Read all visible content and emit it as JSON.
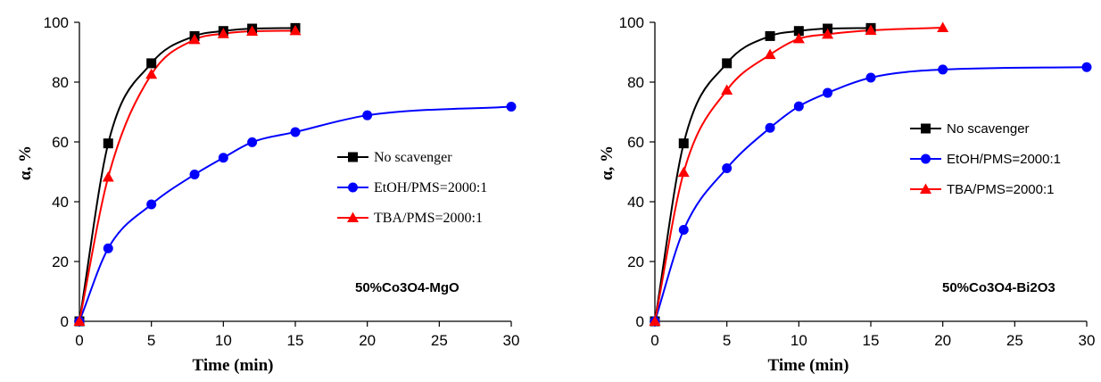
{
  "chart_data": [
    {
      "type": "line",
      "title": "",
      "xlabel": "Time (min)",
      "ylabel": "α, %",
      "annotation": "50%Co3O4-MgO",
      "xlim": [
        0,
        30
      ],
      "ylim": [
        0,
        100
      ],
      "xticks": [
        0,
        5,
        10,
        15,
        20,
        25,
        30
      ],
      "yticks": [
        0,
        20,
        40,
        60,
        80,
        100
      ],
      "grid": false,
      "legend_position": "right",
      "series": [
        {
          "name": "No scavenger",
          "color": "#000000",
          "marker": "square",
          "x": [
            0,
            2,
            5,
            8,
            10,
            12,
            15
          ],
          "y": [
            0,
            59.5,
            86.3,
            95.4,
            97.1,
            97.9,
            98.1
          ]
        },
        {
          "name": "EtOH/PMS=2000:1",
          "color": "#0000ff",
          "marker": "circle",
          "x": [
            0,
            2,
            5,
            8,
            10,
            12,
            15,
            20,
            30
          ],
          "y": [
            0,
            24.4,
            39.1,
            49.1,
            54.7,
            59.9,
            63.3,
            68.9,
            71.8
          ]
        },
        {
          "name": "TBA/PMS=2000:1",
          "color": "#ff0000",
          "marker": "triangle",
          "x": [
            0,
            2,
            5,
            8,
            10,
            12,
            15
          ],
          "y": [
            0,
            48.2,
            82.6,
            94.2,
            96.2,
            97.0,
            97.2
          ]
        }
      ]
    },
    {
      "type": "line",
      "title": "",
      "xlabel": "Time (min)",
      "ylabel": "α, %",
      "annotation": "50%Co3O4-Bi2O3",
      "xlim": [
        0,
        30
      ],
      "ylim": [
        0,
        100
      ],
      "xticks": [
        0,
        5,
        10,
        15,
        20,
        25,
        30
      ],
      "yticks": [
        0,
        20,
        40,
        60,
        80,
        100
      ],
      "grid": false,
      "legend_position": "right",
      "series": [
        {
          "name": "No scavenger",
          "color": "#000000",
          "marker": "square",
          "x": [
            0,
            2,
            5,
            8,
            10,
            12,
            15
          ],
          "y": [
            0,
            59.5,
            86.3,
            95.4,
            97.1,
            97.9,
            98.1
          ]
        },
        {
          "name": "EtOH/PMS=2000:1",
          "color": "#0000ff",
          "marker": "circle",
          "x": [
            0,
            2,
            5,
            8,
            10,
            12,
            15,
            20,
            30
          ],
          "y": [
            0,
            30.6,
            51.2,
            64.7,
            71.9,
            76.4,
            81.5,
            84.2,
            85.0
          ]
        },
        {
          "name": "TBA/PMS=2000:1",
          "color": "#ff0000",
          "marker": "triangle",
          "x": [
            0,
            2,
            5,
            8,
            10,
            12,
            15,
            20
          ],
          "y": [
            0,
            49.8,
            77.3,
            89.2,
            94.5,
            96.0,
            97.3,
            98.2
          ]
        }
      ]
    }
  ]
}
